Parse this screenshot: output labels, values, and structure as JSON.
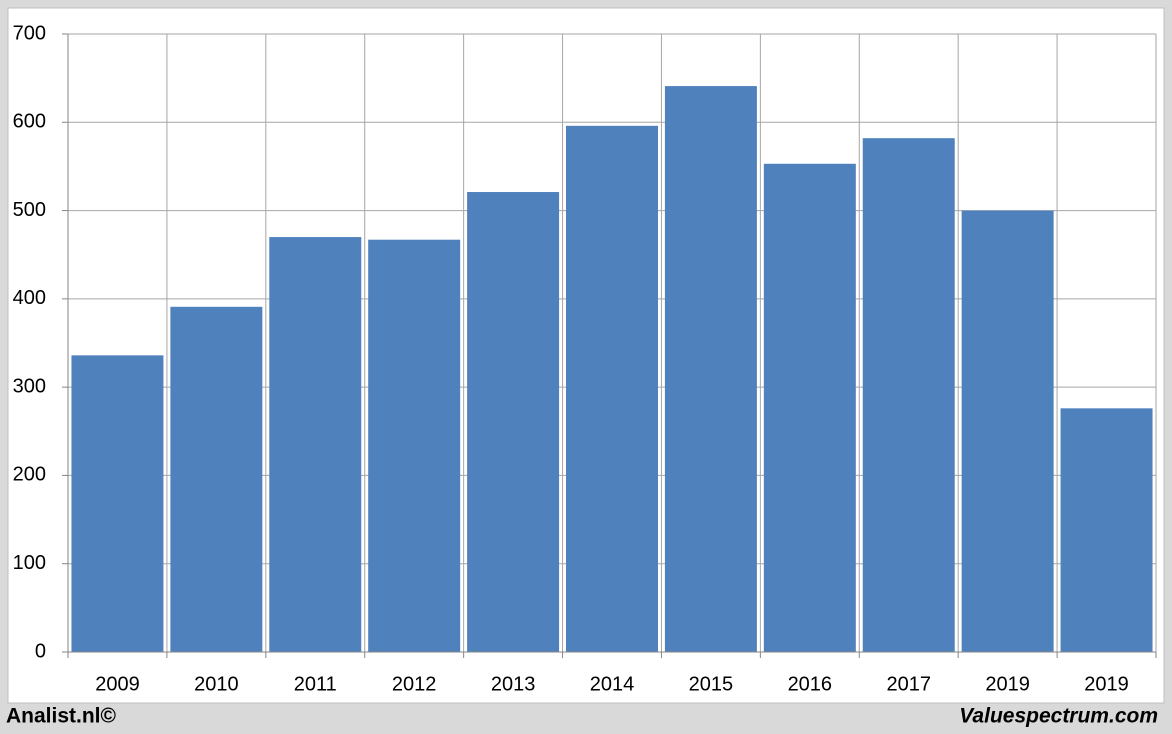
{
  "chart_data": {
    "type": "bar",
    "categories": [
      "2009",
      "2010",
      "2011",
      "2012",
      "2013",
      "2014",
      "2015",
      "2016",
      "2017",
      "2019",
      "2019"
    ],
    "values": [
      336,
      391,
      470,
      467,
      521,
      596,
      641,
      553,
      582,
      500,
      276
    ],
    "color": "#4f81bd",
    "ylim": [
      0,
      700
    ],
    "yticks": [
      0,
      100,
      200,
      300,
      400,
      500,
      600,
      700
    ],
    "grid": true
  },
  "footer": {
    "left": "Analist.nl©",
    "right": "Valuespectrum.com"
  }
}
